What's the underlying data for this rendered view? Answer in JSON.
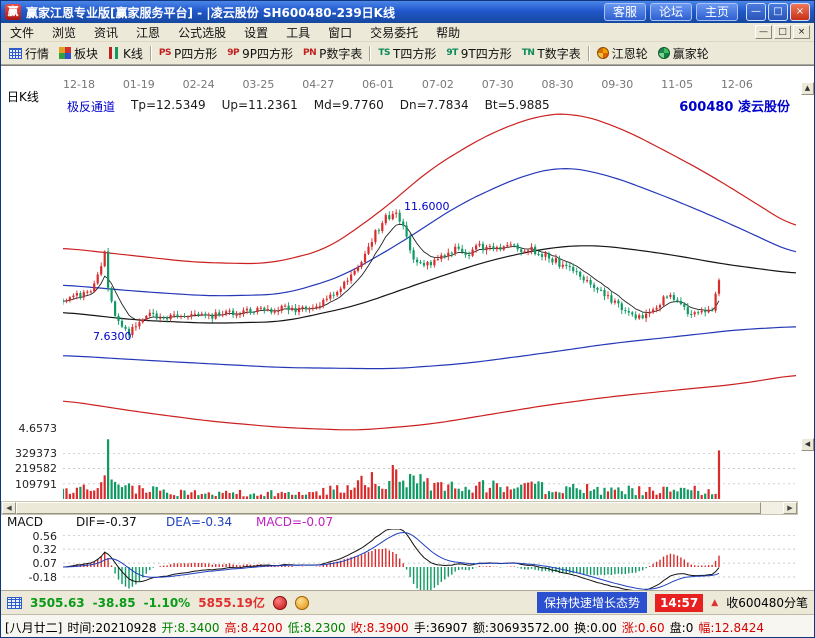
{
  "window": {
    "icon_text": "赢",
    "title": "赢家江恩专业版[赢家服务平台] - |凌云股份  SH600480-239日K线",
    "quick_buttons": [
      "客服",
      "论坛",
      "主页"
    ],
    "controls": {
      "min": "—",
      "max": "□",
      "close": "×"
    }
  },
  "menu": {
    "items": [
      "文件",
      "浏览",
      "资讯",
      "江恩",
      "公式选股",
      "设置",
      "工具",
      "窗口",
      "交易委托",
      "帮助"
    ]
  },
  "toolbar": {
    "items": [
      {
        "label": "行情"
      },
      {
        "label": "板块"
      },
      {
        "label": "K线"
      },
      {
        "label": "P四方形",
        "glyph": "PS"
      },
      {
        "label": "9P四方形",
        "glyph": "9P"
      },
      {
        "label": "P数字表",
        "glyph": "PN"
      },
      {
        "label": "T四方形",
        "glyph": "TS"
      },
      {
        "label": "9T四方形",
        "glyph": "9T"
      },
      {
        "label": "T数字表",
        "glyph": "TN"
      },
      {
        "label": "江恩轮"
      },
      {
        "label": "赢家轮"
      }
    ]
  },
  "icons": {
    "scroll_left": "◀",
    "scroll_right": "▶",
    "scroll_up": "▲",
    "collapse_left": "◀",
    "up_mark": "▲"
  },
  "chart": {
    "period_label": "日K线",
    "dates": [
      "12-18",
      "01-19",
      "02-24",
      "03-25",
      "04-27",
      "06-01",
      "07-02",
      "07-30",
      "08-30",
      "09-30",
      "11-05",
      "12-06"
    ],
    "indicator": {
      "name": "极反通道",
      "tp": "Tp=12.5349",
      "up": "Up=11.2361",
      "md": "Md=9.7760",
      "dn": "Dn=7.7834",
      "bt": "Bt=5.9885"
    },
    "stock_label": "600480  凌云股份",
    "annotations": {
      "peak": "11.6000",
      "low": "7.6300",
      "axis_min": "4.6573"
    },
    "volume_axis": [
      "329373",
      "219582",
      "109791"
    ],
    "macd": {
      "label": "MACD",
      "dif": "DIF=-0.37",
      "dea": "DEA=-0.34",
      "macd": "MACD=-0.07",
      "axis": [
        "0.56",
        "0.32",
        "0.07",
        "-0.18"
      ]
    }
  },
  "chart_data": {
    "type": "candlestick",
    "symbol": "SH600480",
    "stock_name": "凌云股份",
    "period": "日K线",
    "visible_bars": 239,
    "indicator_values": {
      "Tp": 12.5349,
      "Up": 11.2361,
      "Md": 9.776,
      "Dn": 7.7834,
      "Bt": 5.9885
    },
    "annotations": {
      "peak_price": 11.6,
      "early_low": 7.63,
      "left_axis_min": 4.6573
    },
    "volume_axis_values": [
      329373,
      219582,
      109791
    ],
    "macd_values": {
      "DIF": -0.37,
      "DEA": -0.34,
      "MACD": -0.07
    },
    "macd_axis": [
      0.56,
      0.32,
      0.07,
      -0.18
    ],
    "index_quote": {
      "value": 3505.63,
      "change": -38.85,
      "pct": "-1.10%",
      "turnover": "5855.19亿"
    },
    "last_bar": {
      "date": "20210928",
      "open": 8.34,
      "high": 8.42,
      "low": 8.23,
      "close": 8.39,
      "hands": 36907,
      "amount": 30693572.0
    },
    "price_top": 14.9,
    "price_bottom": 4.55,
    "data_extent": 0.895,
    "candle_count": 190,
    "colors": {
      "up": "#d92b2b",
      "down": "#0e9a62"
    },
    "close_path": [
      [
        0,
        8.75
      ],
      [
        0.02,
        8.85
      ],
      [
        0.04,
        9.05
      ],
      [
        0.05,
        9.6
      ],
      [
        0.057,
        10.2
      ],
      [
        0.063,
        8.9
      ],
      [
        0.07,
        8.35
      ],
      [
        0.08,
        7.85
      ],
      [
        0.09,
        7.7
      ],
      [
        0.105,
        8.0
      ],
      [
        0.12,
        8.3
      ],
      [
        0.135,
        8.1
      ],
      [
        0.15,
        8.35
      ],
      [
        0.165,
        8.2
      ],
      [
        0.18,
        8.35
      ],
      [
        0.2,
        8.2
      ],
      [
        0.22,
        8.4
      ],
      [
        0.24,
        8.25
      ],
      [
        0.26,
        8.45
      ],
      [
        0.28,
        8.35
      ],
      [
        0.3,
        8.5
      ],
      [
        0.32,
        8.42
      ],
      [
        0.34,
        8.5
      ],
      [
        0.36,
        8.75
      ],
      [
        0.38,
        9.1
      ],
      [
        0.4,
        9.7
      ],
      [
        0.42,
        10.6
      ],
      [
        0.44,
        11.25
      ],
      [
        0.452,
        11.5
      ],
      [
        0.465,
        10.9
      ],
      [
        0.478,
        10.1
      ],
      [
        0.49,
        9.75
      ],
      [
        0.505,
        9.9
      ],
      [
        0.52,
        10.15
      ],
      [
        0.535,
        10.35
      ],
      [
        0.55,
        10.15
      ],
      [
        0.565,
        10.35
      ],
      [
        0.58,
        10.45
      ],
      [
        0.595,
        10.25
      ],
      [
        0.61,
        10.45
      ],
      [
        0.625,
        10.2
      ],
      [
        0.64,
        10.35
      ],
      [
        0.655,
        10.1
      ],
      [
        0.67,
        9.95
      ],
      [
        0.685,
        9.75
      ],
      [
        0.7,
        9.55
      ],
      [
        0.715,
        9.3
      ],
      [
        0.73,
        9.05
      ],
      [
        0.745,
        8.8
      ],
      [
        0.76,
        8.55
      ],
      [
        0.775,
        8.3
      ],
      [
        0.79,
        8.15
      ],
      [
        0.8,
        8.35
      ],
      [
        0.812,
        8.6
      ],
      [
        0.825,
        8.85
      ],
      [
        0.838,
        8.65
      ],
      [
        0.85,
        8.4
      ],
      [
        0.862,
        8.25
      ],
      [
        0.874,
        8.45
      ],
      [
        0.885,
        8.35
      ],
      [
        0.895,
        9.25
      ]
    ],
    "channels": [
      {
        "name": "tp",
        "color": "#cc2020",
        "pts": [
          [
            0,
            10.35
          ],
          [
            0.08,
            10.15
          ],
          [
            0.18,
            9.9
          ],
          [
            0.28,
            9.85
          ],
          [
            0.36,
            10.3
          ],
          [
            0.44,
            11.6
          ],
          [
            0.5,
            12.8
          ],
          [
            0.58,
            13.9
          ],
          [
            0.65,
            14.5
          ],
          [
            0.7,
            14.55
          ],
          [
            0.76,
            14.1
          ],
          [
            0.82,
            13.4
          ],
          [
            0.88,
            12.66
          ],
          [
            0.92,
            12.1
          ],
          [
            1,
            10.95
          ]
        ]
      },
      {
        "name": "up",
        "color": "#2438b8",
        "pts": [
          [
            0,
            9.2
          ],
          [
            0.1,
            9.0
          ],
          [
            0.2,
            8.85
          ],
          [
            0.3,
            8.9
          ],
          [
            0.38,
            9.45
          ],
          [
            0.46,
            10.5
          ],
          [
            0.54,
            11.7
          ],
          [
            0.62,
            12.55
          ],
          [
            0.68,
            12.9
          ],
          [
            0.74,
            12.65
          ],
          [
            0.8,
            12.15
          ],
          [
            0.86,
            11.6
          ],
          [
            0.92,
            11.0
          ],
          [
            1,
            10.15
          ]
        ]
      },
      {
        "name": "md",
        "color": "#151515",
        "pts": [
          [
            0,
            8.35
          ],
          [
            0.1,
            8.1
          ],
          [
            0.2,
            8.0
          ],
          [
            0.3,
            8.05
          ],
          [
            0.4,
            8.55
          ],
          [
            0.5,
            9.35
          ],
          [
            0.58,
            9.95
          ],
          [
            0.66,
            10.35
          ],
          [
            0.72,
            10.45
          ],
          [
            0.78,
            10.3
          ],
          [
            0.84,
            10.1
          ],
          [
            0.9,
            9.85
          ],
          [
            1,
            9.55
          ]
        ]
      },
      {
        "name": "dn",
        "color": "#2438b8",
        "pts": [
          [
            0,
            7.0
          ],
          [
            0.15,
            6.8
          ],
          [
            0.3,
            6.62
          ],
          [
            0.45,
            6.58
          ],
          [
            0.55,
            6.75
          ],
          [
            0.65,
            7.05
          ],
          [
            0.75,
            7.38
          ],
          [
            0.85,
            7.62
          ],
          [
            0.92,
            7.8
          ],
          [
            1,
            7.9
          ]
        ]
      },
      {
        "name": "bt",
        "color": "#cc2020",
        "pts": [
          [
            0,
            5.6
          ],
          [
            0.1,
            5.25
          ],
          [
            0.2,
            4.95
          ],
          [
            0.3,
            4.75
          ],
          [
            0.4,
            4.66
          ],
          [
            0.5,
            4.85
          ],
          [
            0.58,
            5.15
          ],
          [
            0.66,
            5.45
          ],
          [
            0.75,
            5.72
          ],
          [
            0.85,
            5.95
          ],
          [
            0.92,
            6.1
          ],
          [
            1,
            6.4
          ]
        ]
      }
    ],
    "vol_max": 439164,
    "vol_gridlines": [
      329373,
      219582,
      109791
    ],
    "vol_path": [
      [
        0,
        60000
      ],
      [
        0.04,
        90000
      ],
      [
        0.06,
        140000
      ],
      [
        0.09,
        90000
      ],
      [
        0.15,
        55000
      ],
      [
        0.25,
        50000
      ],
      [
        0.32,
        55000
      ],
      [
        0.38,
        90000
      ],
      [
        0.42,
        160000
      ],
      [
        0.46,
        170000
      ],
      [
        0.5,
        130000
      ],
      [
        0.55,
        120000
      ],
      [
        0.6,
        110000
      ],
      [
        0.65,
        100000
      ],
      [
        0.7,
        90000
      ],
      [
        0.75,
        80000
      ],
      [
        0.8,
        70000
      ],
      [
        0.84,
        80000
      ],
      [
        0.88,
        75000
      ],
      [
        0.895,
        90000
      ]
    ],
    "vol_spikes": [
      {
        "f": 0.06,
        "v": 430000
      },
      {
        "f": 0.452,
        "v": 245000
      },
      {
        "f": 0.895,
        "v": 350000
      }
    ],
    "macd_top": 0.68,
    "macd_bottom": -0.43,
    "macd_gridlines": [
      0.56,
      0.32,
      0.07,
      -0.18
    ]
  },
  "status": {
    "index_value": "3505.63",
    "index_change": "-38.85",
    "index_pct": "-1.10%",
    "turnover": "5855.19亿",
    "news": "保持快速增长态势",
    "time": "14:57",
    "tick_label": "收600480分笔"
  },
  "info": {
    "lunar": "[八月廿二]",
    "fields": [
      {
        "text": "时间:20210928",
        "color": "#000000"
      },
      {
        "text": "开:8.3400",
        "color": "#008000"
      },
      {
        "text": "高:8.4200",
        "color": "#d40000"
      },
      {
        "text": "低:8.2300",
        "color": "#008000"
      },
      {
        "text": "收:8.3900",
        "color": "#d40000"
      },
      {
        "text": "手:36907",
        "color": "#000000"
      },
      {
        "text": "额:30693572.00",
        "color": "#000000"
      },
      {
        "text": "换:0.00",
        "color": "#000000"
      },
      {
        "text": "涨:0.60",
        "color": "#d40000"
      },
      {
        "text": "盘:0",
        "color": "#000000"
      },
      {
        "text": "幅:12.8424",
        "color": "#d40000"
      }
    ]
  }
}
